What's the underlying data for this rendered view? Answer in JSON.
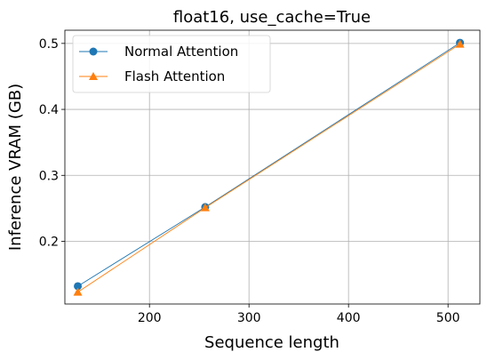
{
  "chart_data": {
    "type": "line",
    "title": "float16, use_cache=True",
    "xlabel": "Sequence length",
    "ylabel": "Inference VRAM (GB)",
    "xlim": [
      115,
      532
    ],
    "ylim": [
      0.105,
      0.52
    ],
    "xticks": [
      200,
      300,
      400,
      500
    ],
    "yticks": [
      0.2,
      0.3,
      0.4,
      0.5
    ],
    "xtick_labels": [
      "200",
      "300",
      "400",
      "500"
    ],
    "ytick_labels": [
      "0.2",
      "0.3",
      "0.4",
      "0.5"
    ],
    "grid": true,
    "legend_position": "top-left",
    "series": [
      {
        "name": "Normal Attention",
        "color": "#1f77b4",
        "marker": "circle",
        "x": [
          128,
          256,
          512
        ],
        "y": [
          0.132,
          0.252,
          0.501
        ]
      },
      {
        "name": "Flash Attention",
        "color": "#ff7f0e",
        "marker": "triangle",
        "x": [
          128,
          256,
          512
        ],
        "y": [
          0.123,
          0.251,
          0.499
        ]
      }
    ]
  }
}
